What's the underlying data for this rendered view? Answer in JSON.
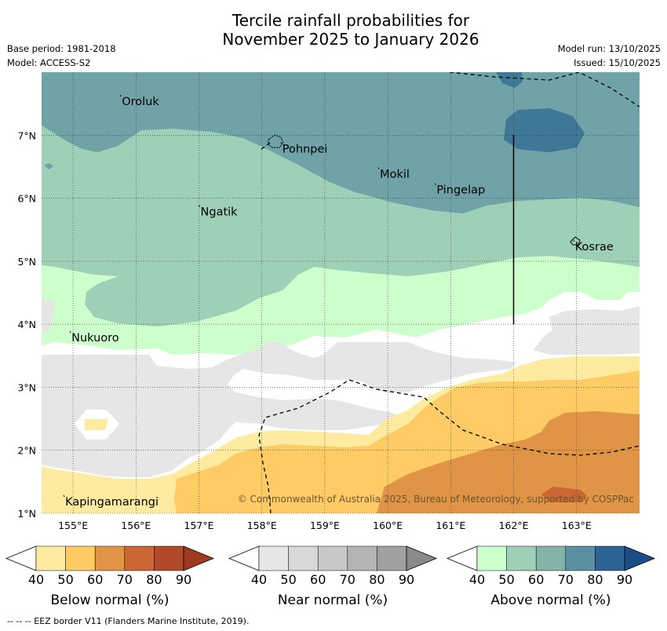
{
  "title_line1": "Tercile rainfall probabilities for",
  "title_line2": "November 2025 to January 2026",
  "base_period": "Base period: 1981-2018",
  "model": "Model: ACCESS-S2",
  "model_run": "Model run: 13/10/2025",
  "issued": "Issued: 15/10/2025",
  "map": {
    "lon_range": [
      154.5,
      164.0
    ],
    "lat_range": [
      1.0,
      8.0
    ],
    "lon_ticks": [
      "155°E",
      "156°E",
      "157°E",
      "158°E",
      "159°E",
      "160°E",
      "161°E",
      "162°E",
      "163°E"
    ],
    "lat_ticks": [
      "1°N",
      "2°N",
      "3°N",
      "4°N",
      "5°N",
      "6°N",
      "7°N"
    ],
    "places": [
      {
        "name": "Oroluk",
        "lon": 155.75,
        "lat": 7.6
      },
      {
        "name": "Pohnpei",
        "lon": 158.3,
        "lat": 6.85
      },
      {
        "name": "Mokil",
        "lon": 159.85,
        "lat": 6.45
      },
      {
        "name": "Pingelap",
        "lon": 160.75,
        "lat": 6.2
      },
      {
        "name": "Ngatik",
        "lon": 157.0,
        "lat": 5.85
      },
      {
        "name": "Kosrae",
        "lon": 162.95,
        "lat": 5.3
      },
      {
        "name": "Nukuoro",
        "lon": 154.95,
        "lat": 3.85
      },
      {
        "name": "Kapingamarangi",
        "lon": 154.85,
        "lat": 1.25
      }
    ],
    "copyright": "© Commonwealth of Australia 2025, Bureau of Meteorology, supported by COSPPac"
  },
  "colorbars": [
    {
      "label": "Below normal (%)",
      "ticks": [
        "40",
        "50",
        "60",
        "70",
        "80",
        "90"
      ],
      "colors": [
        "#ffffff",
        "#ffeba0",
        "#fecb64",
        "#e09445",
        "#cc6633",
        "#b04a2a",
        "#9e3a20"
      ]
    },
    {
      "label": "Near normal (%)",
      "ticks": [
        "40",
        "50",
        "60",
        "70",
        "80",
        "90"
      ],
      "colors": [
        "#ffffff",
        "#e6e6e6",
        "#d8d8d8",
        "#c8c8c8",
        "#b4b4b4",
        "#a0a0a0",
        "#8a8a8a"
      ]
    },
    {
      "label": "Above normal (%)",
      "ticks": [
        "40",
        "50",
        "60",
        "70",
        "80",
        "90"
      ],
      "colors": [
        "#ffffff",
        "#ccffcc",
        "#9ed0b8",
        "#84b4a8",
        "#5a90a0",
        "#2e6495",
        "#1b4e88"
      ]
    }
  ],
  "footnote": "-- -- -- EEZ border V11 (Flanders Marine Institute, 2019)."
}
